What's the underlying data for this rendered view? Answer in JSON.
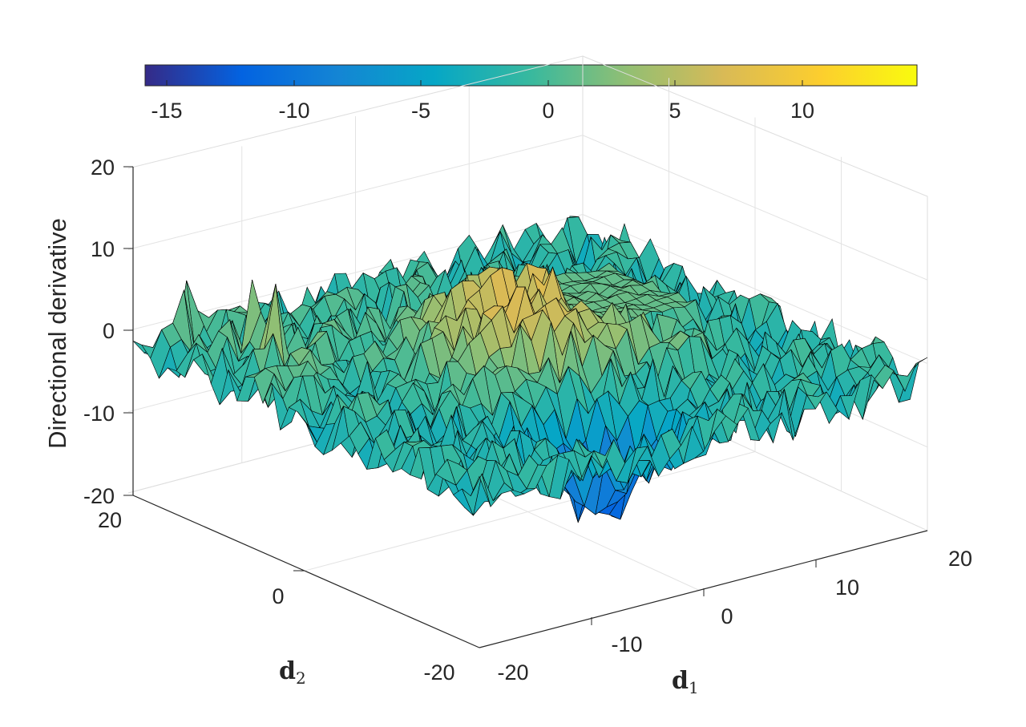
{
  "chart_data": {
    "type": "surface",
    "title": "",
    "zlabel": "Directional derivative",
    "xlabel_base": "d",
    "xlabel_sub": "1",
    "ylabel_base": "d",
    "ylabel_sub": "2",
    "xlim": [
      -20,
      20
    ],
    "ylim": [
      -20,
      20
    ],
    "zlim": [
      -20,
      20
    ],
    "x_ticks": [
      "-20",
      "-10",
      "0",
      "10",
      "20"
    ],
    "y_ticks": [
      "-20",
      "0",
      "20"
    ],
    "z_ticks": [
      "20",
      "10",
      "0",
      "-10",
      "-20"
    ],
    "colorbar": {
      "location": "top",
      "clim": [
        -16,
        14.5
      ],
      "ticks": [
        "-15",
        "-10",
        "-5",
        "0",
        "5",
        "10"
      ],
      "colormap": "parula",
      "colors": [
        "#352a87",
        "#0363e1",
        "#1485d4",
        "#06a7c6",
        "#38b99e",
        "#92bf73",
        "#d9ba56",
        "#fcce2e",
        "#f9fb0e"
      ]
    },
    "grid": true,
    "edge_color": "#000000",
    "surface_description_values": {
      "grid_step": 1,
      "features": [
        {
          "name": "central hump",
          "center": [
            0,
            0
          ],
          "peak_z": 7
        },
        {
          "name": "trough near d1 axis",
          "center": [
            -3,
            -12
          ],
          "min_z": -13
        },
        {
          "name": "flat plateau",
          "region_d1": [
            3,
            15
          ],
          "region_d2": [
            -2,
            10
          ],
          "z": 1.5
        },
        {
          "name": "yellow spikes",
          "region_d1": [
            -20,
            -12
          ],
          "region_d2": [
            5,
            20
          ],
          "max_z": 10
        }
      ]
    }
  }
}
